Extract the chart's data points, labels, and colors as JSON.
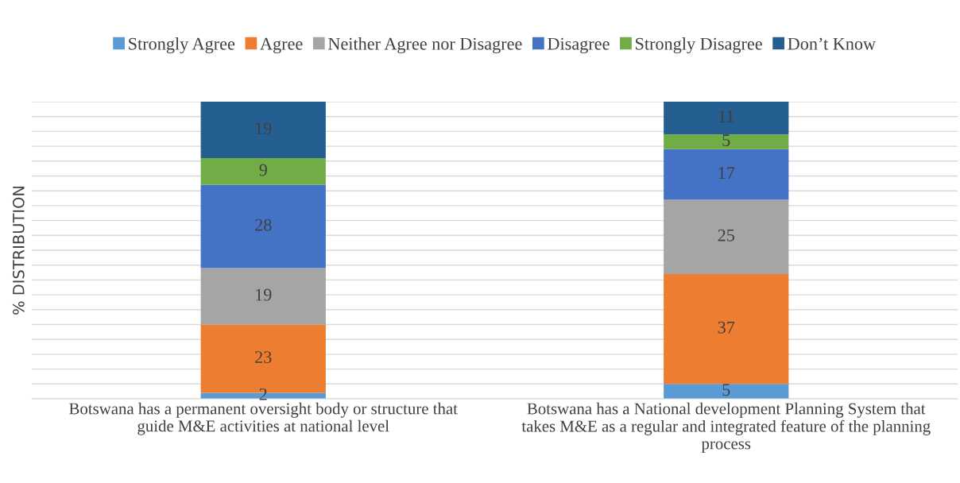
{
  "chart_data": {
    "type": "bar",
    "stacked": true,
    "ylabel": "% DISTRIBUTION",
    "categories": [
      "Botswana has a permanent oversight body or structure that\nguide M&E activities at national level",
      "Botswana has a National development Planning System that\ntakes M&E as a regular and integrated feature of the planning\nprocess"
    ],
    "series": [
      {
        "name": "Strongly Agree",
        "color": "#5b9bd5",
        "values": [
          2,
          5
        ]
      },
      {
        "name": "Agree",
        "color": "#ed7d31",
        "values": [
          23,
          37
        ]
      },
      {
        "name": "Neither Agree nor Disagree",
        "color": "#a5a5a5",
        "values": [
          19,
          25
        ]
      },
      {
        "name": "Disagree",
        "color": "#4472c4",
        "values": [
          28,
          17
        ]
      },
      {
        "name": "Strongly Disagree",
        "color": "#70ad47",
        "values": [
          9,
          5
        ]
      },
      {
        "name": "Don’t Know",
        "color": "#255e91",
        "values": [
          19,
          11
        ]
      }
    ],
    "ylim": [
      0,
      100
    ],
    "yticks": [
      {
        "value": 0,
        "label": null
      },
      {
        "value": 5,
        "label": null
      },
      {
        "value": 10,
        "label": null
      },
      {
        "value": 15,
        "label": null
      },
      {
        "value": 20,
        "label": null
      },
      {
        "value": 25,
        "label": null
      },
      {
        "value": 30,
        "label": null
      },
      {
        "value": 35,
        "label": null
      },
      {
        "value": 40,
        "label": null
      },
      {
        "value": 45,
        "label": null
      },
      {
        "value": 50,
        "label": null
      },
      {
        "value": 55,
        "label": null
      },
      {
        "value": 60,
        "label": null
      },
      {
        "value": 65,
        "label": null
      },
      {
        "value": 70,
        "label": null
      },
      {
        "value": 75,
        "label": null
      },
      {
        "value": 80,
        "label": null
      },
      {
        "value": 85,
        "label": null
      },
      {
        "value": 90,
        "label": null
      },
      {
        "value": 95,
        "label": null
      },
      {
        "value": 100,
        "label": null
      }
    ],
    "tick_labels": "x",
    "grid": "y",
    "legend": "top",
    "data_labels": true
  }
}
